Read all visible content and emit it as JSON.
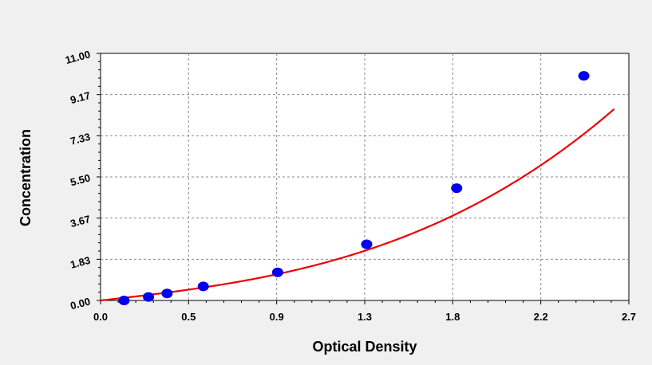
{
  "chart_data": {
    "type": "scatter",
    "title": "",
    "xlabel": "Optical Density",
    "ylabel": "Concentration",
    "xlim": [
      0.0,
      2.7
    ],
    "ylim": [
      0.0,
      11.0
    ],
    "x_ticks": [
      "0.0",
      "0.5",
      "0.9",
      "1.3",
      "1.8",
      "2.2",
      "2.7"
    ],
    "y_ticks": [
      "0.00",
      "1.83",
      "3.67",
      "5.50",
      "7.33",
      "9.17",
      "11.00"
    ],
    "grid": true,
    "legend": "none",
    "series": [
      {
        "type": "scatter",
        "color": "#0000ee",
        "x": [
          0.12,
          0.245,
          0.34,
          0.525,
          0.905,
          1.36,
          1.82,
          2.47
        ],
        "y": [
          0.0,
          0.156,
          0.312,
          0.625,
          1.25,
          2.5,
          5.0,
          10.0
        ]
      },
      {
        "type": "line",
        "color": "#ee0000",
        "fit": "cubic",
        "coefficients": [
          0.0,
          0.96,
          0.11,
          0.29
        ],
        "x_range": [
          0.0,
          2.625
        ]
      }
    ]
  }
}
